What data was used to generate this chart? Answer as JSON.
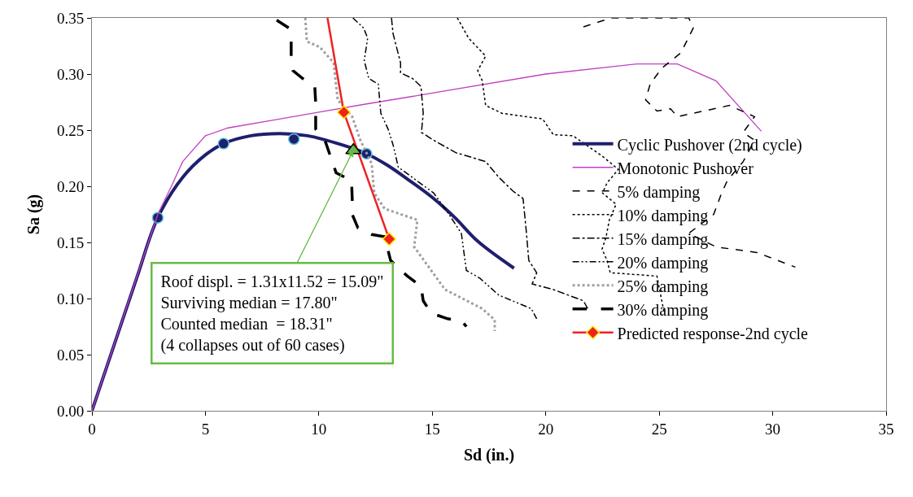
{
  "chart_data": {
    "type": "line",
    "xlabel": "Sd (in.)",
    "ylabel": "Sa (g)",
    "xlim": [
      0,
      35
    ],
    "ylim": [
      0,
      0.35
    ],
    "xticks": [
      0,
      5,
      10,
      15,
      20,
      25,
      30,
      35
    ],
    "yticks": [
      {
        "value": 0,
        "label": "0.00"
      },
      {
        "value": 0.05,
        "label": "0.05"
      },
      {
        "value": 0.1,
        "label": "0.10"
      },
      {
        "value": 0.15,
        "label": "0.15"
      },
      {
        "value": 0.2,
        "label": "0.20"
      },
      {
        "value": 0.25,
        "label": "0.25"
      },
      {
        "value": 0.3,
        "label": "0.30"
      },
      {
        "value": 0.35,
        "label": "0.35"
      }
    ],
    "legend": "right",
    "series": [
      {
        "name": "Cyclic Pushover (2nd cycle)",
        "color": "#1f1f6e",
        "line_style": "solid",
        "marker": "none",
        "x": [
          0,
          1,
          2,
          2.9,
          4,
          5,
          5.8,
          7,
          8.3,
          9.5,
          11,
          12.1,
          13,
          14,
          15,
          16,
          17,
          18.6
        ],
        "values": [
          0,
          0.06,
          0.12,
          0.172,
          0.208,
          0.228,
          0.238,
          0.245,
          0.247,
          0.245,
          0.237,
          0.229,
          0.219,
          0.205,
          0.19,
          0.172,
          0.151,
          0.127
        ]
      },
      {
        "type": "scatter",
        "color": "#1f1f6e",
        "marker": "circle",
        "x": [
          2.9,
          5.8,
          8.9,
          12.1
        ],
        "values": [
          0.172,
          0.238,
          0.242,
          0.229
        ]
      },
      {
        "name": "Monotonic Pushover",
        "color": "#c040c0",
        "line_style": "solid",
        "marker": "none",
        "x": [
          0,
          2.9,
          3.5,
          4,
          5,
          6,
          8,
          10,
          12,
          15,
          20,
          24,
          25.8,
          27.5,
          29.5
        ],
        "values": [
          0,
          0.175,
          0.2,
          0.222,
          0.245,
          0.252,
          0.259,
          0.266,
          0.273,
          0.283,
          0.3,
          0.309,
          0.309,
          0.294,
          0.249
        ]
      },
      {
        "name": "5% damping",
        "color": "#000000",
        "line_style": "dashed",
        "marker": "none",
        "x": [
          21.66,
          22.9,
          26.3,
          26.5,
          25.96,
          25.1,
          24.6,
          24.4,
          24.9,
          25.5,
          25.8,
          28.1,
          29.2,
          28.7,
          29.2,
          28.7,
          28.0,
          27.75,
          27.4,
          26.3,
          27.5,
          29.3,
          31.0
        ],
        "values": [
          0.342,
          0.35,
          0.35,
          0.341,
          0.319,
          0.305,
          0.291,
          0.277,
          0.267,
          0.269,
          0.262,
          0.272,
          0.262,
          0.248,
          0.241,
          0.222,
          0.205,
          0.194,
          0.175,
          0.158,
          0.146,
          0.141,
          0.128
        ]
      },
      {
        "name": "10% damping",
        "color": "#000000",
        "line_style": "dotted",
        "marker": "none",
        "x": [
          16.1,
          16.6,
          17.35,
          17.0,
          17.2,
          17.35,
          18.07,
          19.86,
          20.33,
          21.2,
          22.48,
          23.2,
          22.7,
          22.5,
          23.1,
          22.8,
          22.66,
          22.48,
          22.7,
          22.84,
          24.9,
          25.2
        ],
        "values": [
          0.35,
          0.332,
          0.316,
          0.303,
          0.294,
          0.272,
          0.265,
          0.26,
          0.246,
          0.245,
          0.227,
          0.215,
          0.203,
          0.194,
          0.184,
          0.17,
          0.155,
          0.144,
          0.134,
          0.123,
          0.12,
          0.089
        ]
      },
      {
        "name": "15% damping",
        "color": "#000000",
        "line_style": "dashdot",
        "marker": "none",
        "x": [
          13.2,
          13.27,
          13.6,
          13.6,
          14.13,
          14.5,
          14.6,
          14.52,
          15.06,
          16.03,
          17.35,
          17.93,
          18.54,
          19.0,
          19.15,
          19.25,
          19.6,
          19.4,
          20.33,
          21.66,
          21.9
        ],
        "values": [
          0.35,
          0.336,
          0.31,
          0.301,
          0.296,
          0.289,
          0.265,
          0.248,
          0.241,
          0.23,
          0.222,
          0.208,
          0.196,
          0.189,
          0.158,
          0.134,
          0.123,
          0.113,
          0.108,
          0.098,
          0.089
        ]
      },
      {
        "name": "20% damping",
        "color": "#000000",
        "line_style": "dashdotdot",
        "marker": "none",
        "x": [
          11.5,
          11.97,
          12.15,
          12.0,
          12.2,
          12.62,
          12.73,
          13.05,
          13.27,
          13.5,
          15.06,
          15.67,
          16.28,
          16.5,
          17.1,
          17.93,
          19.36,
          19.6
        ],
        "values": [
          0.35,
          0.341,
          0.332,
          0.312,
          0.296,
          0.291,
          0.265,
          0.251,
          0.237,
          0.217,
          0.194,
          0.177,
          0.158,
          0.125,
          0.118,
          0.103,
          0.091,
          0.082
        ]
      },
      {
        "name": "25% damping",
        "color": "#a0a0a0",
        "line_style": "dotted",
        "marker": "none",
        "x": [
          9.4,
          9.47,
          10.04,
          10.65,
          10.83,
          11.47,
          11.83,
          12.33,
          12.44,
          12.9,
          14.34,
          14.2,
          14.95,
          15.56,
          17.2,
          17.75,
          17.75
        ],
        "values": [
          0.35,
          0.329,
          0.324,
          0.31,
          0.277,
          0.262,
          0.241,
          0.22,
          0.194,
          0.18,
          0.17,
          0.146,
          0.125,
          0.108,
          0.091,
          0.081,
          0.071
        ]
      },
      {
        "name": "30% damping",
        "color": "#000000",
        "line_style": "longdash",
        "marker": "none",
        "x": [
          8.14,
          8.68,
          8.78,
          8.78,
          8.86,
          9.29,
          9.82,
          9.86,
          9.86,
          10.3,
          10.54,
          10.76,
          11.44,
          11.47,
          11.47,
          11.72,
          12.33,
          12.9,
          13.16,
          13.9,
          14.5,
          14.6,
          14.95,
          15.67,
          16.3,
          16.5
        ],
        "values": [
          0.348,
          0.341,
          0.329,
          0.315,
          0.303,
          0.296,
          0.289,
          0.274,
          0.251,
          0.239,
          0.225,
          0.212,
          0.205,
          0.189,
          0.175,
          0.163,
          0.157,
          0.155,
          0.134,
          0.12,
          0.111,
          0.098,
          0.087,
          0.082,
          0.08,
          0.075
        ]
      },
      {
        "color": "#ee2222",
        "line_style": "solid",
        "x": [
          10.38,
          11.1
        ],
        "values": [
          0.35,
          0.266
        ]
      },
      {
        "name": "Predicted response-2nd cycle",
        "color": "#ee2222",
        "line_style": "solid",
        "marker": "diamond",
        "x": [
          11.1,
          13.1
        ],
        "values": [
          0.266,
          0.153
        ]
      },
      {
        "type": "scatter",
        "color": "#66bb44",
        "marker": "triangle",
        "x": [
          11.52
        ],
        "values": [
          0.232
        ]
      }
    ],
    "annotations": [
      {
        "text": "Roof displ. = 1.31x11.52 = 15.09\"\nSurviving median = 17.80\"\nCounted median  = 18.31\"\n(4 collapses out of 60 cases)",
        "x": 11.52,
        "y": 0.232
      }
    ]
  }
}
